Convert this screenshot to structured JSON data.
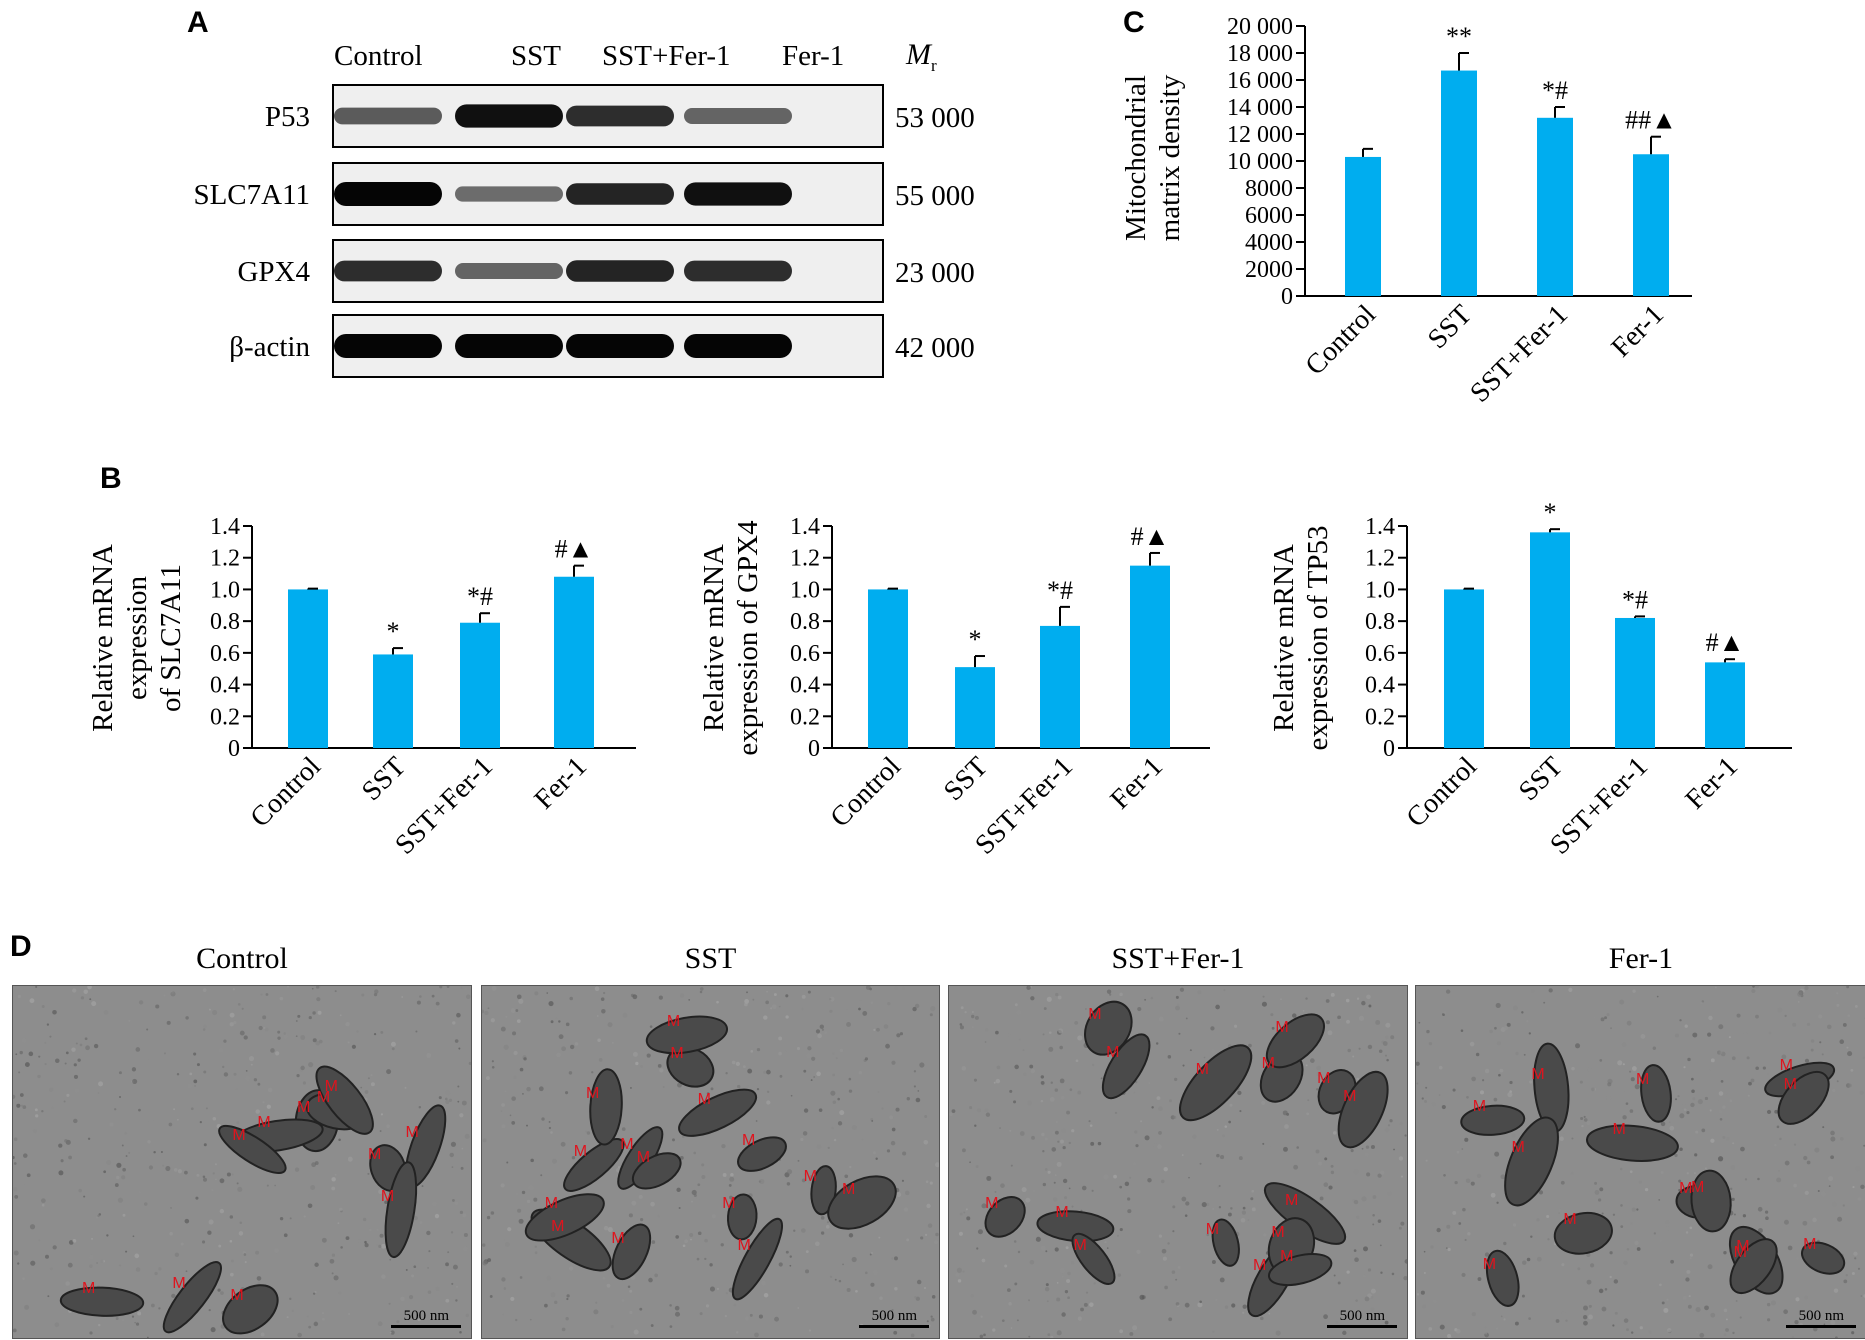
{
  "panels": {
    "a": "A",
    "b": "B",
    "c": "C",
    "d": "D"
  },
  "colors": {
    "bar": "#00adef",
    "axis": "#000000",
    "em_bg": "#8d8d8d",
    "m_label": "#e0141e"
  },
  "western_blot": {
    "lanes": [
      "Control",
      "SST",
      "SST+Fer-1",
      "Fer-1"
    ],
    "mr_label": "M",
    "mr_sub": "r",
    "rows": [
      {
        "protein": "P53",
        "mr": "53 000",
        "intensity": [
          0.55,
          0.95,
          0.8,
          0.5
        ]
      },
      {
        "protein": "SLC7A11",
        "mr": "55 000",
        "intensity": [
          1.0,
          0.45,
          0.85,
          0.95
        ]
      },
      {
        "protein": "GPX4",
        "mr": "23 000",
        "intensity": [
          0.8,
          0.5,
          0.85,
          0.8
        ]
      },
      {
        "protein": "β-actin",
        "mr": "42 000",
        "intensity": [
          1.0,
          1.0,
          1.0,
          1.0
        ]
      }
    ]
  },
  "chart_data": [
    {
      "id": "C",
      "type": "bar",
      "categories": [
        "Control",
        "SST",
        "SST+Fer-1",
        "Fer-1"
      ],
      "values": [
        10300,
        16700,
        13200,
        10500
      ],
      "errors": [
        600,
        1300,
        800,
        1300
      ],
      "annotations": [
        "",
        "**",
        "*#",
        "##▲"
      ],
      "ylabel_lines": [
        "Mitochondrial",
        "matrix density"
      ],
      "ylim": [
        0,
        20000
      ],
      "yticks": [
        0,
        2000,
        4000,
        6000,
        8000,
        10000,
        12000,
        14000,
        16000,
        18000,
        20000
      ],
      "ytick_labels": [
        "0",
        "2000",
        "4000",
        "6000",
        "8000",
        "10 000",
        "12 000",
        "14 000",
        "16 000",
        "18 000",
        "20 000"
      ]
    },
    {
      "id": "B1",
      "type": "bar",
      "categories": [
        "Control",
        "SST",
        "SST+Fer-1",
        "Fer-1"
      ],
      "values": [
        1.0,
        0.59,
        0.79,
        1.08
      ],
      "errors": [
        0.005,
        0.04,
        0.06,
        0.07
      ],
      "annotations": [
        "",
        "*",
        "*#",
        "#▲"
      ],
      "ylabel_lines": [
        "Relative mRNA",
        "expression",
        "of SLC7A11"
      ],
      "ylim": [
        0,
        1.4
      ],
      "yticks": [
        0,
        0.2,
        0.4,
        0.6,
        0.8,
        1.0,
        1.2,
        1.4
      ],
      "ytick_labels": [
        "0",
        "0.2",
        "0.4",
        "0.6",
        "0.8",
        "1.0",
        "1.2",
        "1.4"
      ]
    },
    {
      "id": "B2",
      "type": "bar",
      "categories": [
        "Control",
        "SST",
        "SST+Fer-1",
        "Fer-1"
      ],
      "values": [
        1.0,
        0.51,
        0.77,
        1.15
      ],
      "errors": [
        0.005,
        0.07,
        0.12,
        0.08
      ],
      "annotations": [
        "",
        "*",
        "*#",
        "#▲"
      ],
      "ylabel_lines": [
        "Relative mRNA",
        "expression of GPX4"
      ],
      "ylim": [
        0,
        1.4
      ],
      "yticks": [
        0,
        0.2,
        0.4,
        0.6,
        0.8,
        1.0,
        1.2,
        1.4
      ],
      "ytick_labels": [
        "0",
        "0.2",
        "0.4",
        "0.6",
        "0.8",
        "1.0",
        "1.2",
        "1.4"
      ]
    },
    {
      "id": "B3",
      "type": "bar",
      "categories": [
        "Control",
        "SST",
        "SST+Fer-1",
        "Fer-1"
      ],
      "values": [
        1.0,
        1.36,
        0.82,
        0.54
      ],
      "errors": [
        0.005,
        0.02,
        0.01,
        0.02
      ],
      "annotations": [
        "",
        "*",
        "*#",
        "#▲"
      ],
      "ylabel_lines": [
        "Relative mRNA",
        "expression of TP53"
      ],
      "ylim": [
        0,
        1.4
      ],
      "yticks": [
        0,
        0.2,
        0.4,
        0.6,
        0.8,
        1.0,
        1.2,
        1.4
      ],
      "ytick_labels": [
        "0",
        "0.2",
        "0.4",
        "0.6",
        "0.8",
        "1.0",
        "1.2",
        "1.4"
      ]
    }
  ],
  "em_images": [
    {
      "title": "Control",
      "scale": "500 nm",
      "m_count": 11
    },
    {
      "title": "SST",
      "scale": "500 nm",
      "m_count": 15
    },
    {
      "title": "SST+Fer-1",
      "scale": "500 nm",
      "m_count": 15
    },
    {
      "title": "Fer-1",
      "scale": "500 nm",
      "m_count": 14
    },
    {
      "m_label": "M"
    }
  ]
}
